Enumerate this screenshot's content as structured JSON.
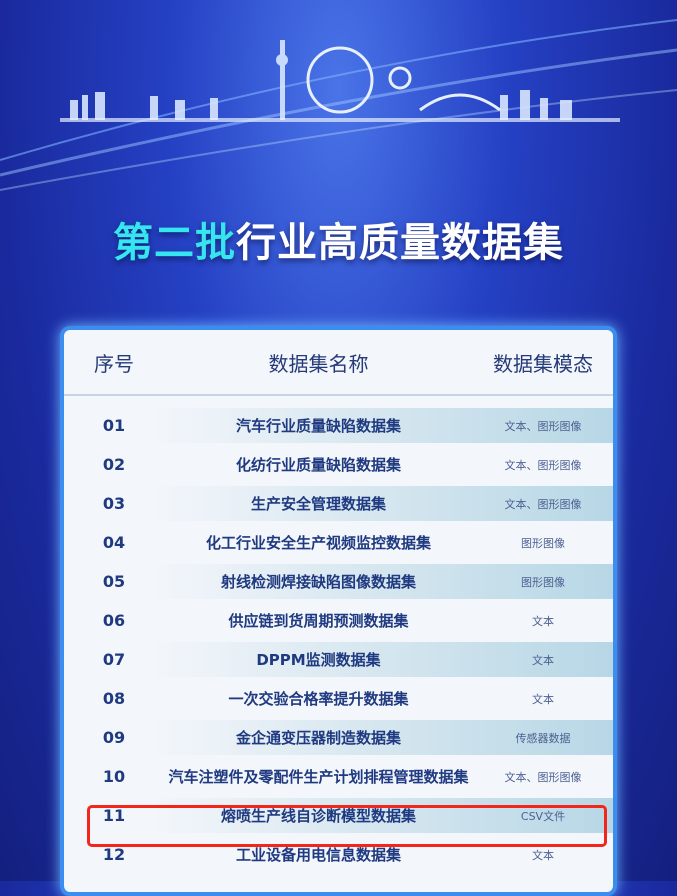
{
  "title": {
    "highlight": "第二批",
    "rest": "行业高质量数据集"
  },
  "table": {
    "headers": [
      "序号",
      "数据集名称",
      "数据集模态"
    ],
    "rows": [
      {
        "no": "01",
        "name": "汽车行业质量缺陷数据集",
        "modality": "文本、图形图像"
      },
      {
        "no": "02",
        "name": "化纺行业质量缺陷数据集",
        "modality": "文本、图形图像"
      },
      {
        "no": "03",
        "name": "生产安全管理数据集",
        "modality": "文本、图形图像"
      },
      {
        "no": "04",
        "name": "化工行业安全生产视频监控数据集",
        "modality": "图形图像"
      },
      {
        "no": "05",
        "name": "射线检测焊接缺陷图像数据集",
        "modality": "图形图像"
      },
      {
        "no": "06",
        "name": "供应链到货周期预测数据集",
        "modality": "文本"
      },
      {
        "no": "07",
        "name": "DPPM监测数据集",
        "modality": "文本"
      },
      {
        "no": "08",
        "name": "一次交验合格率提升数据集",
        "modality": "文本"
      },
      {
        "no": "09",
        "name": "金企通变压器制造数据集",
        "modality": "传感器数据"
      },
      {
        "no": "10",
        "name": "汽车注塑件及零配件生产计划排程管理数据集",
        "modality": "文本、图形图像"
      },
      {
        "no": "11",
        "name": "熔喷生产线自诊断模型数据集",
        "modality": "CSV文件"
      },
      {
        "no": "12",
        "name": "工业设备用电信息数据集",
        "modality": "文本"
      }
    ]
  },
  "highlighted_row": "11",
  "colors": {
    "highlight_box": "#f3261c",
    "title_accent": "#35e6f0",
    "card_border": "#3b8ef0"
  }
}
